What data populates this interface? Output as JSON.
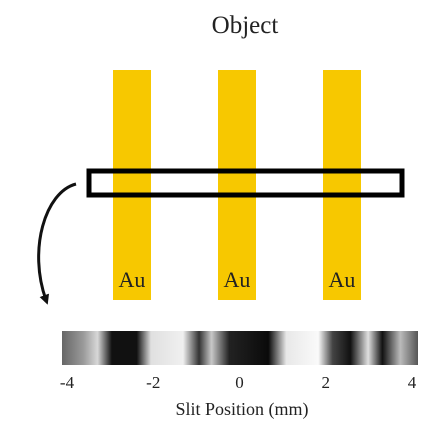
{
  "title": "Object",
  "bars": [
    {
      "label": "Au"
    },
    {
      "label": "Au"
    },
    {
      "label": "Au"
    }
  ],
  "axis": {
    "label": "Slit Position (mm)",
    "xlim": [
      -4,
      4
    ],
    "ticks": [
      -4,
      -2,
      0,
      2,
      4
    ]
  }
}
